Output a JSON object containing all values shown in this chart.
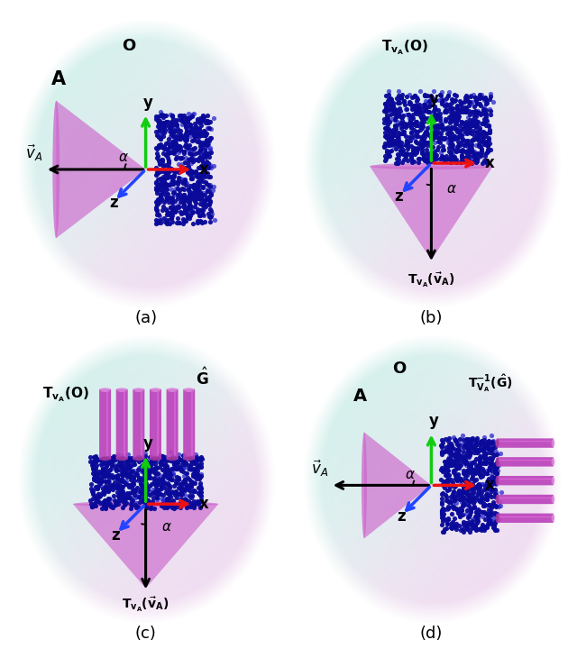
{
  "figure_size": [
    6.4,
    7.3
  ],
  "dpi": 100,
  "bg_color": "#ffffff",
  "object_color": "#0a0a9a",
  "cone_color": "#cc66cc",
  "cone_alpha": 0.65,
  "axis_colors": {
    "x": "#ee1111",
    "y": "#11cc11",
    "z": "#2244ff"
  },
  "handle_color": "#bb44bb",
  "handle_dark": "#993399",
  "teal": [
    0.78,
    0.94,
    0.91
  ],
  "pink": [
    0.94,
    0.82,
    0.94
  ],
  "white": [
    0.97,
    0.97,
    0.97
  ]
}
